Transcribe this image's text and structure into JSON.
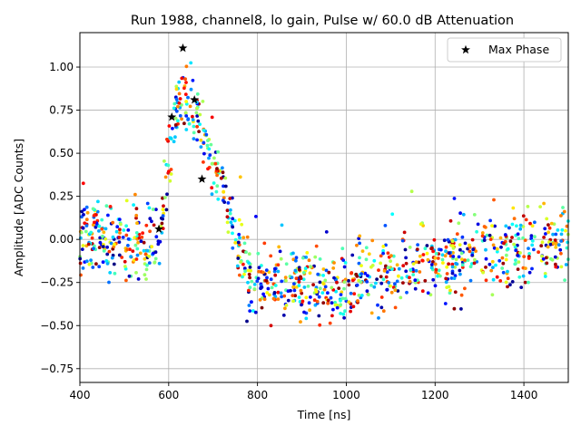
{
  "chart_data": {
    "type": "scatter",
    "title": "Run 1988, channel8, lo gain, Pulse w/ 60.0 dB Attenuation",
    "xlabel": "Time [ns]",
    "ylabel": "Amplitude [ADC Counts]",
    "xlim": [
      400,
      1500
    ],
    "ylim": [
      -0.83,
      1.2
    ],
    "grid": true,
    "xticks": [
      400,
      600,
      800,
      1000,
      1200,
      1400
    ],
    "yticks": [
      -0.75,
      -0.5,
      -0.25,
      0.0,
      0.25,
      0.5,
      0.75,
      1.0
    ],
    "xtick_labels": [
      "400",
      "600",
      "800",
      "1000",
      "1200",
      "1400"
    ],
    "ytick_labels": [
      "−0.75",
      "−0.50",
      "−0.25",
      "0.00",
      "0.25",
      "0.50",
      "0.75",
      "1.00"
    ],
    "colormap": "jet",
    "traces_description": "Multi-trace scatter of ADC samples colored by trace index (jet colormap)",
    "baseline_segments": [
      {
        "x_start": 400,
        "x_end": 580,
        "mean": 0.0,
        "spread": 0.17
      },
      {
        "x_start": 580,
        "x_end": 610,
        "rise_to": 0.7,
        "spread": 0.1
      },
      {
        "x_start": 610,
        "x_end": 660,
        "mean": 0.8,
        "spread": 0.18
      },
      {
        "x_start": 660,
        "x_end": 780,
        "decay_to": -0.2,
        "spread": 0.15
      },
      {
        "x_start": 780,
        "x_end": 1000,
        "mean": -0.27,
        "spread": 0.14
      },
      {
        "x_start": 1000,
        "x_end": 1200,
        "mean": -0.12,
        "spread": 0.15
      },
      {
        "x_start": 1200,
        "x_end": 1500,
        "mean": -0.02,
        "spread": 0.14
      }
    ],
    "max_phase_series": {
      "name": "Max Phase",
      "marker": "star",
      "color": "#000000",
      "x": [
        578,
        607,
        632,
        658,
        675
      ],
      "y": [
        0.06,
        0.71,
        1.11,
        0.81,
        0.35
      ]
    },
    "legend": {
      "position": "top-right",
      "entries": [
        "Max Phase"
      ]
    }
  }
}
